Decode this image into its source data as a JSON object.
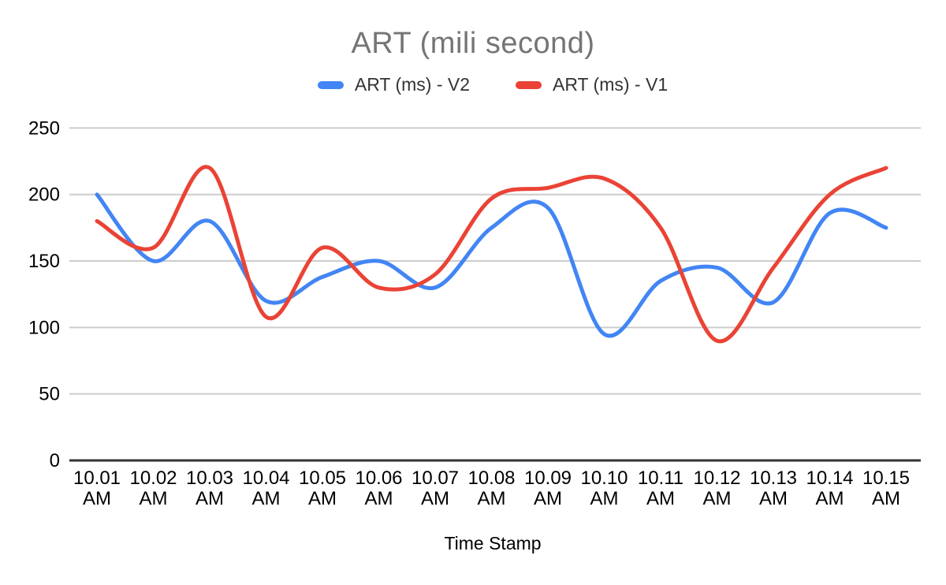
{
  "chart_data": {
    "type": "line",
    "title": "ART (mili second)",
    "xlabel": "Time Stamp",
    "ylabel": "",
    "ylim": [
      0,
      250
    ],
    "y_ticks": [
      0,
      50,
      100,
      150,
      200,
      250
    ],
    "grid": true,
    "smooth": true,
    "legend_position": "top",
    "categories": [
      "10.01 AM",
      "10.02 AM",
      "10.03 AM",
      "10.04 AM",
      "10.05 AM",
      "10.06 AM",
      "10.07 AM",
      "10.08 AM",
      "10.09 AM",
      "10.10 AM",
      "10.11 AM",
      "10.12 AM",
      "10.13 AM",
      "10.14 AM",
      "10.15 AM"
    ],
    "series": [
      {
        "name": "ART (ms) - V2",
        "color": "#4285F4",
        "values": [
          200,
          150,
          180,
          120,
          138,
          150,
          130,
          175,
          190,
          95,
          135,
          145,
          119,
          186,
          175
        ]
      },
      {
        "name": "ART (ms) - V1",
        "color": "#EA4335",
        "values": [
          180,
          160,
          220,
          108,
          160,
          130,
          140,
          197,
          205,
          212,
          175,
          90,
          145,
          200,
          220
        ]
      }
    ]
  },
  "colors": {
    "title_text": "#757575",
    "axis_text": "#000000",
    "legend_text": "#333333",
    "gridline": "#cccccc",
    "baseline": "#333333",
    "background": "#ffffff"
  }
}
